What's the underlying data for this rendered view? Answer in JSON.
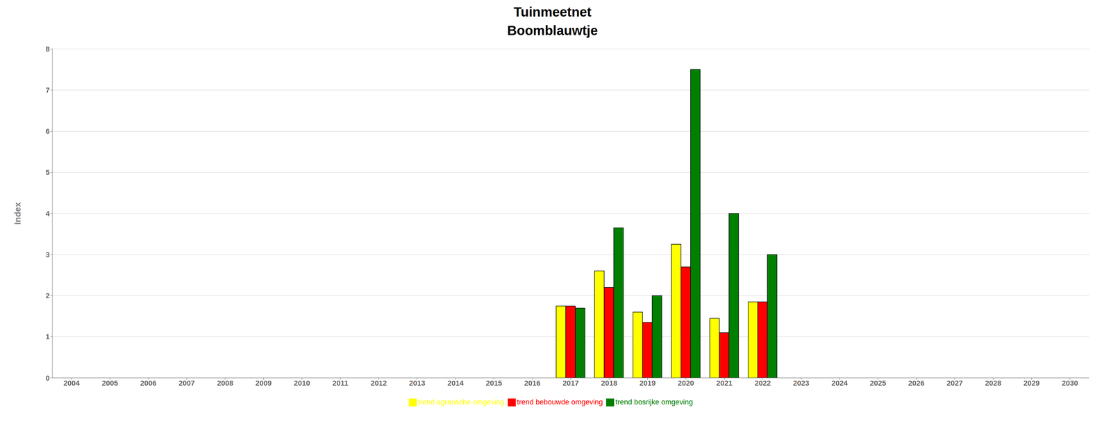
{
  "chart_data": {
    "type": "bar",
    "title": "Tuinmeetnet",
    "subtitle": "Boomblauwtje",
    "y_label": "Index",
    "categories": [
      "2004",
      "2005",
      "2006",
      "2007",
      "2008",
      "2009",
      "2010",
      "2011",
      "2012",
      "2013",
      "2014",
      "2015",
      "2016",
      "2017",
      "2018",
      "2019",
      "2020",
      "2021",
      "2022",
      "2023",
      "2024",
      "2025",
      "2026",
      "2027",
      "2028",
      "2029",
      "2030"
    ],
    "series": [
      {
        "name": "trend agrarische omgeving",
        "color": "#FFFF00",
        "values": [
          null,
          null,
          null,
          null,
          null,
          null,
          null,
          null,
          null,
          null,
          null,
          null,
          null,
          1.75,
          2.6,
          1.6,
          3.25,
          1.45,
          1.85,
          null,
          null,
          null,
          null,
          null,
          null,
          null,
          null
        ]
      },
      {
        "name": "trend bebouwde omgeving",
        "color": "#FF0000",
        "values": [
          null,
          null,
          null,
          null,
          null,
          null,
          null,
          null,
          null,
          null,
          null,
          null,
          null,
          1.75,
          2.2,
          1.35,
          2.7,
          1.1,
          1.85,
          null,
          null,
          null,
          null,
          null,
          null,
          null,
          null
        ]
      },
      {
        "name": "trend bosrijke omgeving",
        "color": "#008000",
        "values": [
          null,
          null,
          null,
          null,
          null,
          null,
          null,
          null,
          null,
          null,
          null,
          null,
          null,
          1.7,
          3.65,
          2.0,
          7.5,
          4.0,
          3.0,
          null,
          null,
          null,
          null,
          null,
          null,
          null,
          null
        ]
      }
    ],
    "ylim": [
      0,
      8
    ],
    "yticks": [
      0,
      1,
      2,
      3,
      4,
      5,
      6,
      7,
      8
    ],
    "grid": true,
    "legend": "bottom"
  }
}
